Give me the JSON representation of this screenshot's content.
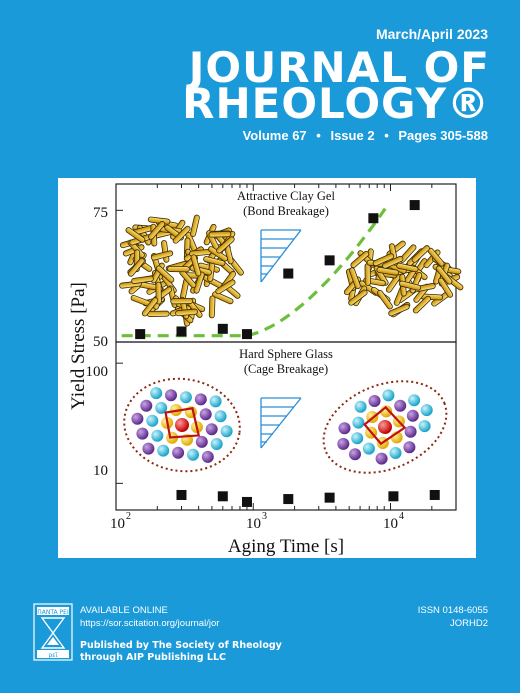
{
  "cover": {
    "issue_date": "March/April 2023",
    "title_line1": "JOURNAL OF",
    "title_line2": "RHEOLOGY",
    "registered_mark": "®",
    "volume": "Volume 67",
    "issue": "Issue 2",
    "pages": "Pages 305-588",
    "separator": "•",
    "background_color": "#1a9ad9"
  },
  "figure": {
    "ylabel": "Yield Stress [Pa]",
    "xlabel": "Aging Time [s]",
    "top_panel": {
      "title_line1": "Attractive Clay Gel",
      "title_line2": "(Bond Breakage)",
      "ytick_labels": [
        "75",
        "50"
      ],
      "ylim": [
        50,
        80
      ]
    },
    "bottom_panel": {
      "title_line1": "Hard Sphere Glass",
      "title_line2": "(Cage Breakage)",
      "ytick_labels": [
        "100",
        "10"
      ],
      "ylim": [
        6,
        150
      ]
    },
    "xtick_labels": [
      {
        "base": "10",
        "exp": "2"
      },
      {
        "base": "10",
        "exp": "3"
      },
      {
        "base": "10",
        "exp": "4"
      }
    ],
    "dashed_line_color": "#6bbf3a"
  },
  "chart_data": [
    {
      "type": "scatter",
      "title": "Attractive Clay Gel (Bond Breakage)",
      "xlabel": "Aging Time [s]",
      "ylabel": "Yield Stress [Pa]",
      "x_scale": "log",
      "xlim": [
        100,
        30000
      ],
      "ylim": [
        50,
        80
      ],
      "x": [
        150,
        300,
        600,
        900,
        1800,
        3600,
        7500,
        15000
      ],
      "y": [
        51.5,
        52,
        52.5,
        51.5,
        63,
        65.5,
        73.5,
        76
      ],
      "trend": "dashed"
    },
    {
      "type": "scatter",
      "title": "Hard Sphere Glass (Cage Breakage)",
      "xlabel": "Aging Time [s]",
      "ylabel": "Yield Stress [Pa]",
      "x_scale": "log",
      "y_scale": "log",
      "xlim": [
        100,
        30000
      ],
      "ylim": [
        6,
        150
      ],
      "x": [
        300,
        600,
        900,
        1800,
        3600,
        10500,
        21000
      ],
      "y": [
        8.0,
        7.8,
        7.0,
        7.4,
        7.6,
        7.8,
        8.0
      ]
    }
  ],
  "footer": {
    "available_online": "AVAILABLE ONLINE",
    "url": "https://sor.scitation.org/journal/jor",
    "publisher_line1": "Published by The Society of Rheology",
    "publisher_line2": "through AIP Publishing LLC",
    "issn": "ISSN 0148-6055",
    "coden": "JORHD2",
    "logo_top_text": "ΠANTA PEI",
    "logo_bottom_text": "ρεῖ"
  }
}
